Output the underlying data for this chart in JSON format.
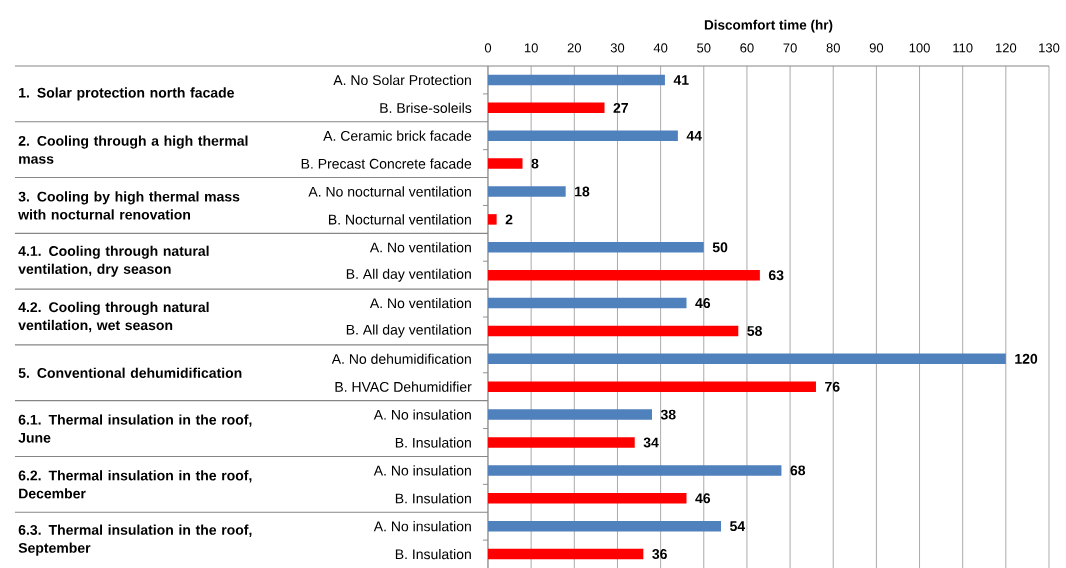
{
  "chart_data": {
    "type": "bar",
    "orientation": "horizontal",
    "xlabel": "Discomfort time (hr)",
    "categories": [
      "A. No Solar Protection",
      "B. Brise-soleils",
      "A. Ceramic brick facade",
      "B. Precast Concrete facade",
      "A. No nocturnal ventilation",
      "B. Nocturnal ventilation",
      "A. No ventilation",
      "B. All day ventilation",
      "A. No ventilation",
      "B. All day ventilation",
      "A. No dehumidification",
      "B. HVAC Dehumidifier",
      "A. No insulation",
      "B. Insulation",
      "A. No insulation",
      "B. Insulation",
      "A. No insulation",
      "B. Insulation"
    ],
    "values": [
      41,
      27,
      44,
      8,
      18,
      2,
      50,
      63,
      46,
      58,
      120,
      76,
      38,
      34,
      68,
      46,
      54,
      36
    ],
    "colors": [
      "#4f81bd",
      "#ff0000",
      "#4f81bd",
      "#ff0000",
      "#4f81bd",
      "#ff0000",
      "#4f81bd",
      "#ff0000",
      "#4f81bd",
      "#ff0000",
      "#4f81bd",
      "#ff0000",
      "#4f81bd",
      "#ff0000",
      "#4f81bd",
      "#ff0000",
      "#4f81bd",
      "#ff0000"
    ],
    "xlim": [
      0,
      130
    ],
    "xticks": [
      0,
      10,
      20,
      30,
      40,
      50,
      60,
      70,
      80,
      90,
      100,
      110,
      120,
      130
    ],
    "grid": "x",
    "data_labels": true,
    "annotations": [
      "1. Solar protection north facade",
      "2. Cooling through a high thermal mass",
      "3. Cooling by high thermal mass with nocturnal renovation",
      "4.1. Cooling through natural ventilation, dry season",
      "4.2. Cooling through natural ventilation, wet season",
      "5. Conventional dehumidification",
      "6.1. Thermal insulation in the roof, June",
      "6.2. Thermal insulation in the roof, December",
      "6.3. Thermal insulation in the roof, September"
    ]
  }
}
